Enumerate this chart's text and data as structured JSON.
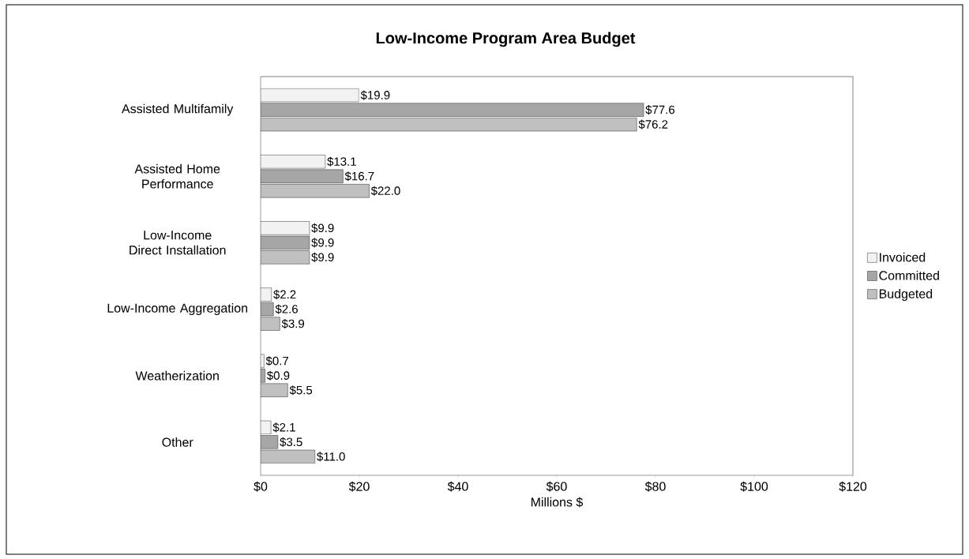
{
  "chart_data": {
    "type": "bar",
    "orientation": "horizontal",
    "title": "Low-Income Program Area Budget",
    "xlabel": "Millions $",
    "categories": [
      "Assisted Multifamily",
      "Assisted Home Performance",
      "Low-Income Direct Installation",
      "Low-Income Aggregation",
      "Weatherization",
      "Other"
    ],
    "series": [
      {
        "name": "Invoiced",
        "color": "#f2f2f2",
        "values": [
          19.9,
          13.1,
          9.9,
          2.2,
          0.7,
          2.1
        ],
        "value_labels": [
          "$19.9",
          "$13.1",
          "$9.9",
          "$2.2",
          "$0.7",
          "$2.1"
        ]
      },
      {
        "name": "Committed",
        "color": "#a6a6a6",
        "values": [
          77.6,
          16.7,
          9.9,
          2.6,
          0.9,
          3.5
        ],
        "value_labels": [
          "$77.6",
          "$16.7",
          "$9.9",
          "$2.6",
          "$0.9",
          "$3.5"
        ]
      },
      {
        "name": "Budgeted",
        "color": "#c0c0c0",
        "values": [
          76.2,
          22.0,
          9.9,
          3.9,
          5.5,
          11.0
        ],
        "value_labels": [
          "$76.2",
          "$22.0",
          "$9.9",
          "$3.9",
          "$5.5",
          "$11.0"
        ]
      }
    ],
    "xlim": [
      0,
      120
    ],
    "xticks": [
      {
        "value": 0,
        "label": "$0"
      },
      {
        "value": 20,
        "label": "$20"
      },
      {
        "value": 40,
        "label": "$40"
      },
      {
        "value": 60,
        "label": "$60"
      },
      {
        "value": 80,
        "label": "$80"
      },
      {
        "value": 100,
        "label": "$100"
      },
      {
        "value": 120,
        "label": "$120"
      }
    ],
    "grid": false,
    "legend": "right"
  }
}
